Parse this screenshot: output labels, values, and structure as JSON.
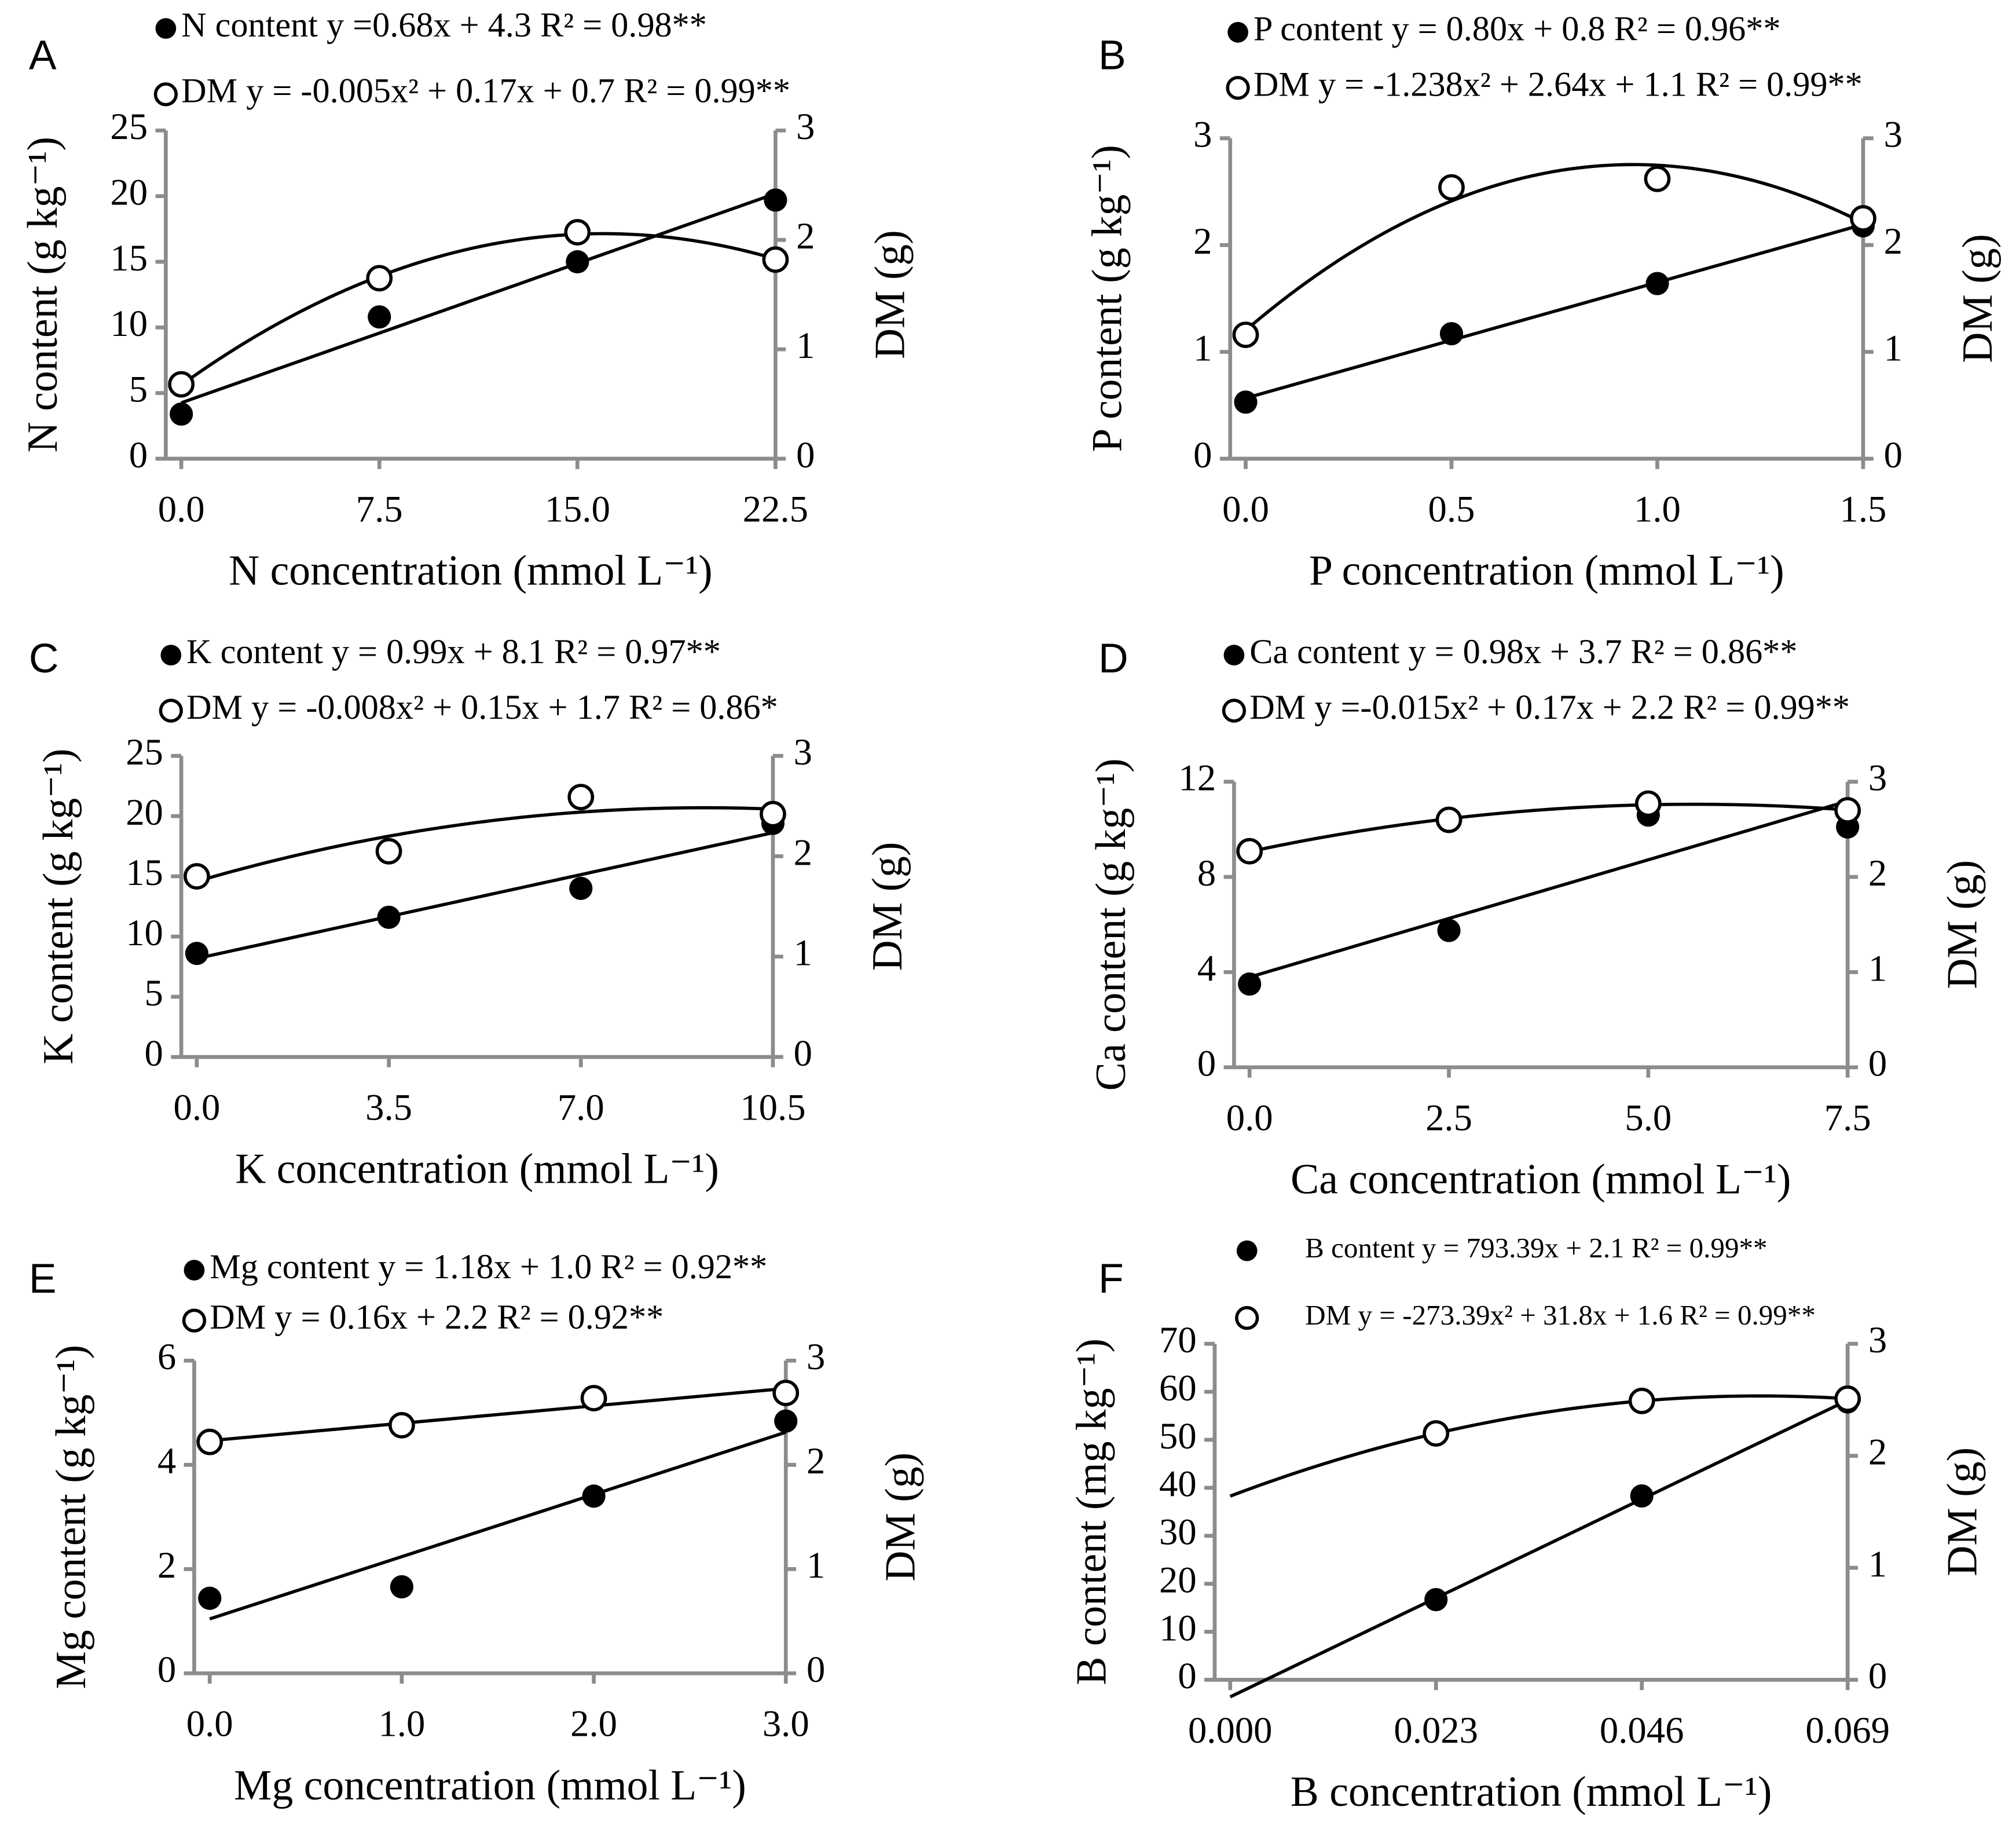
{
  "chart_data": [
    {
      "type": "scatter",
      "panel": "A",
      "x_label": "N concentration (mmol L⁻¹)",
      "y_label": "N content (g kg⁻¹)",
      "y2_label": "DM (g)",
      "xlim": [
        0,
        22.5
      ],
      "xticks": [
        {
          "value": 0,
          "label": "0.0"
        },
        7.5,
        {
          "value": 15,
          "label": "15.0"
        },
        22.5
      ],
      "ylim": [
        0,
        25
      ],
      "yticks": [
        0,
        5,
        10,
        15,
        20,
        25
      ],
      "y2lim": [
        0,
        3
      ],
      "y2ticks": [
        0,
        1,
        2,
        3
      ],
      "series": [
        {
          "name": "N content y =0.68x + 4.3 R² = 0.98**",
          "color": "#000000",
          "marker": "filled",
          "trendline": "linear",
          "x": [
            0,
            7.5,
            15,
            22.5
          ],
          "values": [
            3.4,
            10.8,
            15,
            19.7
          ]
        },
        {
          "name": "DM y = -0.005x² + 0.17x + 0.7 R² = 0.99**",
          "color": "#000000",
          "marker": "open",
          "trendline": "poly2",
          "axis": "y2",
          "x": [
            0,
            7.5,
            15,
            22.5
          ],
          "values": [
            0.68,
            1.65,
            2.07,
            1.82
          ]
        }
      ]
    },
    {
      "type": "scatter",
      "panel": "B",
      "x_label": "P concentration (mmol L⁻¹)",
      "y_label": "P content (g kg⁻¹)",
      "y2_label": "DM (g)",
      "xlim": [
        0,
        1.5
      ],
      "xticks": [
        {
          "value": 0,
          "label": "0.0"
        },
        0.5,
        {
          "value": 1,
          "label": "1.0"
        },
        1.5
      ],
      "ylim": [
        0,
        3
      ],
      "yticks": [
        0,
        1,
        2,
        3
      ],
      "y2lim": [
        0,
        3
      ],
      "y2ticks": [
        0,
        1,
        2,
        3
      ],
      "series": [
        {
          "name": "P content y = 0.80x + 0.8 R² = 0.96**",
          "color": "#000000",
          "marker": "filled",
          "trendline": "linear",
          "x": [
            0,
            0.5,
            1,
            1.5
          ],
          "values": [
            0.53,
            1.17,
            1.64,
            2.18
          ]
        },
        {
          "name": "DM y = -1.238x² + 2.64x + 1.1 R² = 0.99**",
          "color": "#000000",
          "marker": "open",
          "trendline": "poly2",
          "axis": "y2",
          "x": [
            0,
            0.5,
            1,
            1.5
          ],
          "values": [
            1.16,
            2.54,
            2.62,
            2.25
          ]
        }
      ]
    },
    {
      "type": "scatter",
      "panel": "C",
      "x_label": "K concentration (mmol L⁻¹)",
      "y_label": "K content (g kg⁻¹)",
      "y2_label": "DM (g)",
      "xlim": [
        0,
        10.5
      ],
      "xticks": [
        {
          "value": 0,
          "label": "0.0"
        },
        3.5,
        {
          "value": 7,
          "label": "7.0"
        },
        10.5
      ],
      "ylim": [
        0,
        25
      ],
      "yticks": [
        0,
        5,
        10,
        15,
        20,
        25
      ],
      "y2lim": [
        0,
        3
      ],
      "y2ticks": [
        0,
        1,
        2,
        3
      ],
      "series": [
        {
          "name": "K content y = 0.99x + 8.1 R² = 0.97**",
          "color": "#000000",
          "marker": "filled",
          "trendline": "linear",
          "x": [
            0,
            3.5,
            7,
            10.5
          ],
          "values": [
            8.6,
            11.6,
            14.0,
            19.4
          ]
        },
        {
          "name": "DM y  = -0.008x² + 0.15x + 1.7 R² = 0.86*",
          "color": "#000000",
          "marker": "open",
          "trendline": "poly2",
          "axis": "y2",
          "x": [
            0,
            3.5,
            7,
            10.5
          ],
          "values": [
            1.8,
            2.05,
            2.59,
            2.42
          ]
        }
      ]
    },
    {
      "type": "scatter",
      "panel": "D",
      "x_label": "Ca concentration (mmol L⁻¹)",
      "y_label": "Ca content (g kg⁻¹)",
      "y2_label": "DM (g)",
      "xlim": [
        0,
        7.5
      ],
      "xticks": [
        {
          "value": 0,
          "label": "0.0"
        },
        2.5,
        {
          "value": 5,
          "label": "5.0"
        },
        7.5
      ],
      "ylim": [
        0,
        12
      ],
      "yticks": [
        0,
        4,
        8,
        12
      ],
      "y2lim": [
        0,
        3
      ],
      "y2ticks": [
        0,
        1,
        2,
        3
      ],
      "series": [
        {
          "name": "Ca content y = 0.98x + 3.7 R² = 0.86**",
          "color": "#000000",
          "marker": "filled",
          "trendline": "linear",
          "x": [
            0,
            2.5,
            5,
            7.5
          ],
          "values": [
            3.5,
            5.75,
            10.6,
            10.1
          ]
        },
        {
          "name": "DM y =-0.015x² + 0.17x + 2.2 R² = 0.99**",
          "color": "#000000",
          "marker": "open",
          "trendline": "poly2",
          "axis": "y2",
          "x": [
            0,
            2.5,
            5,
            7.5
          ],
          "values": [
            2.27,
            2.6,
            2.77,
            2.7
          ]
        }
      ]
    },
    {
      "type": "scatter",
      "panel": "E",
      "x_label": "Mg concentration (mmol L⁻¹)",
      "y_label": "Mg content (g kg⁻¹)",
      "y2_label": "DM (g)",
      "xlim": [
        0,
        3
      ],
      "xticks": [
        {
          "value": 0,
          "label": "0.0"
        },
        {
          "value": 1,
          "label": "1.0"
        },
        {
          "value": 2,
          "label": "2.0"
        },
        {
          "value": 3,
          "label": "3.0"
        }
      ],
      "ylim": [
        0,
        6
      ],
      "yticks": [
        0,
        2,
        4,
        6
      ],
      "y2lim": [
        0,
        3
      ],
      "y2ticks": [
        0,
        1,
        2,
        3
      ],
      "series": [
        {
          "name": "Mg content y = 1.18x + 1.0 R² = 0.92**",
          "color": "#000000",
          "marker": "filled",
          "trendline": "linear",
          "x": [
            0,
            1,
            2,
            3
          ],
          "values": [
            1.44,
            1.66,
            3.4,
            4.84
          ]
        },
        {
          "name": "DM y = 0.16x + 2.2 R² = 0.92**",
          "color": "#000000",
          "marker": "open",
          "trendline": "linear",
          "axis": "y2",
          "x": [
            0,
            1,
            2,
            3
          ],
          "values": [
            2.22,
            2.38,
            2.64,
            2.69
          ]
        }
      ]
    },
    {
      "type": "scatter",
      "panel": "F",
      "x_label": "B concentration (mmol L⁻¹)",
      "y_label": "B content (mg kg⁻¹)",
      "y2_label": "DM (g)",
      "xlim": [
        0,
        0.069
      ],
      "xticks": [
        {
          "value": 0,
          "label": "0.000"
        },
        0.023,
        0.046,
        0.069
      ],
      "ylim": [
        0,
        70
      ],
      "yticks": [
        0,
        10,
        20,
        30,
        40,
        50,
        60,
        70
      ],
      "y2lim": [
        0,
        3
      ],
      "y2ticks": [
        0,
        1,
        2,
        3
      ],
      "series": [
        {
          "name": "B content y = 793.39x + 2.1 R² = 0.99**",
          "color": "#000000",
          "marker": "filled",
          "trendline": "linear",
          "x": [
            0.023,
            0.046,
            0.069
          ],
          "values": [
            16.7,
            38.3,
            57.9
          ]
        },
        {
          "name": "DM y = -273.39x² + 31.8x + 1.6 R² = 0.99**",
          "color": "#000000",
          "marker": "open",
          "trendline": "poly2",
          "axis": "y2",
          "x": [
            0.023,
            0.046,
            0.069
          ],
          "values": [
            2.2,
            2.49,
            2.51
          ]
        }
      ]
    }
  ]
}
